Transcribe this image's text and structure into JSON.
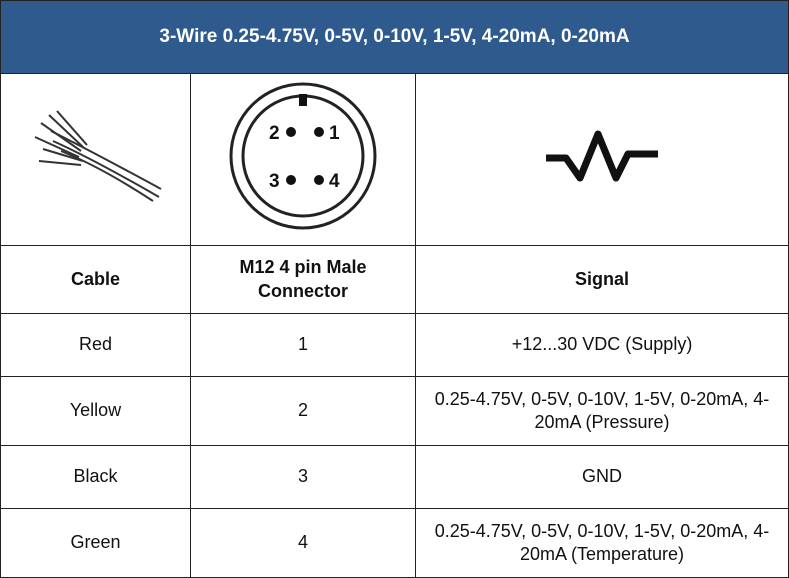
{
  "header": {
    "title": "3-Wire 0.25-4.75V, 0-5V, 0-10V, 1-5V, 4-20mA, 0-20mA"
  },
  "connector": {
    "pins": [
      "1",
      "2",
      "3",
      "4"
    ]
  },
  "table": {
    "columns": [
      "Cable",
      "M12 4 pin Male Connector",
      "Signal"
    ],
    "rows": [
      [
        "Red",
        "1",
        "+12...30 VDC (Supply)"
      ],
      [
        "Yellow",
        "2",
        "0.25-4.75V, 0-5V, 0-10V, 1-5V, 0-20mA, 4-20mA (Pressure)"
      ],
      [
        "Black",
        "3",
        "GND"
      ],
      [
        "Green",
        "4",
        "0.25-4.75V, 0-5V, 0-10V, 1-5V, 0-20mA, 4-20mA (Temperature)"
      ]
    ]
  }
}
